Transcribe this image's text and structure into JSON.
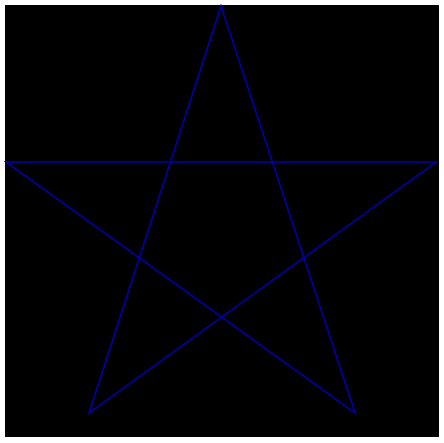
{
  "figure": {
    "shape": "pentagram",
    "background_color": "#000000",
    "frame_color": "#ffffff",
    "stroke_color": "#0000aa"
  }
}
